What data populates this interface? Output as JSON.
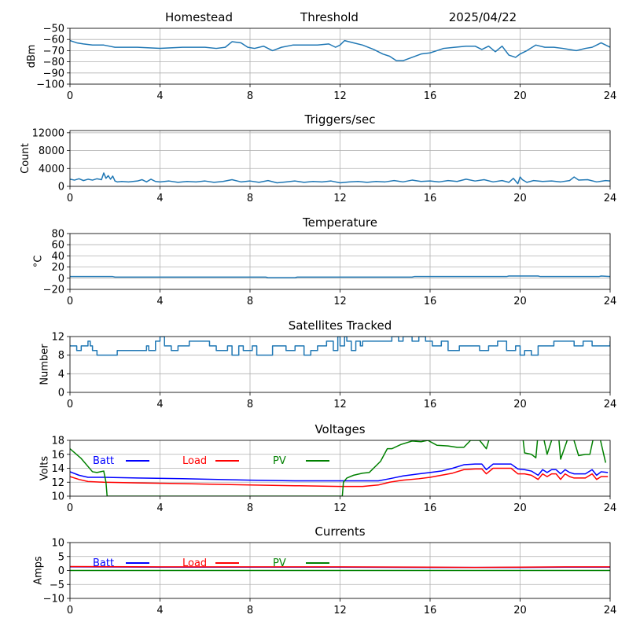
{
  "header": {
    "station": "Homestead",
    "mode": "Threshold",
    "date": "2025/04/22"
  },
  "colors": {
    "default": "#1f77b4",
    "batt": "#0000ff",
    "load": "#ff0000",
    "pv": "#008000",
    "grid": "#b0b0b0"
  },
  "chart_data": [
    {
      "id": "signal",
      "type": "line",
      "title": "",
      "xlabel": "",
      "ylabel": "dBm",
      "xlim": [
        0,
        24
      ],
      "ylim": [
        -100,
        -50
      ],
      "xticks": [
        0,
        4,
        8,
        12,
        16,
        20,
        24
      ],
      "yticks": [
        -100,
        -90,
        -80,
        -70,
        -60,
        -50
      ],
      "grid": true,
      "series": [
        {
          "color": "#1f77b4",
          "x": [
            0,
            0.3,
            0.6,
            1,
            1.5,
            2,
            3,
            4,
            5,
            6,
            6.5,
            6.9,
            7.2,
            7.6,
            7.9,
            8.2,
            8.6,
            9,
            9.4,
            9.9,
            10.4,
            11,
            11.5,
            11.8,
            12,
            12.2,
            12.6,
            13,
            13.5,
            13.9,
            14.2,
            14.5,
            14.8,
            15.2,
            15.6,
            16,
            16.3,
            16.6,
            17.1,
            17.6,
            18,
            18.3,
            18.6,
            18.9,
            19.2,
            19.5,
            19.8,
            20,
            20.3,
            20.7,
            21.1,
            21.5,
            21.9,
            22.2,
            22.5,
            22.9,
            23.2,
            23.6,
            24
          ],
          "y": [
            -61,
            -63,
            -64,
            -65,
            -65,
            -67,
            -67,
            -68,
            -67,
            -67,
            -68,
            -67,
            -62,
            -63,
            -67,
            -68,
            -66,
            -70,
            -67,
            -65,
            -65,
            -65,
            -64,
            -67,
            -65,
            -61,
            -63,
            -65,
            -69,
            -73,
            -75,
            -79,
            -79,
            -76,
            -73,
            -72,
            -70,
            -68,
            -67,
            -66,
            -66,
            -69,
            -66,
            -71,
            -66,
            -74,
            -76,
            -73,
            -70,
            -65,
            -67,
            -67,
            -68,
            -69,
            -70,
            -68,
            -67,
            -63,
            -67
          ]
        }
      ]
    },
    {
      "id": "triggers",
      "type": "line",
      "title": "Triggers/sec",
      "xlabel": "",
      "ylabel": "Count",
      "xlim": [
        0,
        24
      ],
      "ylim": [
        0,
        12500
      ],
      "xticks": [
        0,
        4,
        8,
        12,
        16,
        20,
        24
      ],
      "yticks": [
        0,
        4000,
        8000,
        12000
      ],
      "grid": true,
      "series": [
        {
          "color": "#1f77b4",
          "x": [
            0,
            0.2,
            0.4,
            0.6,
            0.8,
            1,
            1.2,
            1.4,
            1.5,
            1.6,
            1.7,
            1.8,
            1.9,
            2,
            2.1,
            2.3,
            2.6,
            3,
            3.2,
            3.4,
            3.6,
            3.8,
            4,
            4.4,
            4.8,
            5.2,
            5.6,
            6,
            6.4,
            6.8,
            7.2,
            7.6,
            8,
            8.4,
            8.8,
            9.2,
            9.6,
            10,
            10.4,
            10.8,
            11.2,
            11.6,
            12,
            12.4,
            12.8,
            13.2,
            13.6,
            14,
            14.4,
            14.8,
            15.2,
            15.6,
            16,
            16.4,
            16.8,
            17.2,
            17.6,
            18,
            18.4,
            18.8,
            19.2,
            19.5,
            19.7,
            19.9,
            20,
            20.1,
            20.3,
            20.6,
            21,
            21.4,
            21.8,
            22.2,
            22.4,
            22.6,
            23,
            23.4,
            23.8,
            24
          ],
          "y": [
            1600,
            1400,
            1700,
            1300,
            1600,
            1400,
            1700,
            1500,
            3000,
            1800,
            2400,
            1600,
            2300,
            1200,
            1000,
            1100,
            1000,
            1200,
            1500,
            1000,
            1600,
            1100,
            1000,
            1200,
            900,
            1100,
            1000,
            1200,
            900,
            1100,
            1500,
            1000,
            1200,
            900,
            1300,
            800,
            1000,
            1200,
            900,
            1100,
            1000,
            1200,
            800,
            1000,
            1100,
            900,
            1100,
            1000,
            1300,
            1000,
            1400,
            1100,
            1200,
            1000,
            1300,
            1100,
            1600,
            1200,
            1500,
            1000,
            1300,
            900,
            1800,
            600,
            2100,
            1500,
            900,
            1300,
            1100,
            1200,
            1000,
            1300,
            2100,
            1400,
            1500,
            1000,
            1300,
            1200
          ]
        }
      ]
    },
    {
      "id": "temperature",
      "type": "line",
      "title": "Temperature",
      "xlabel": "",
      "ylabel": "°C",
      "xlim": [
        0,
        24
      ],
      "ylim": [
        -20,
        80
      ],
      "xticks": [
        0,
        4,
        8,
        12,
        16,
        20,
        24
      ],
      "yticks": [
        -20,
        0,
        20,
        40,
        60,
        80
      ],
      "grid": true,
      "series": [
        {
          "color": "#1f77b4",
          "x": [
            0,
            1.9,
            2,
            8.7,
            8.8,
            10,
            10.1,
            15.2,
            15.3,
            19.4,
            19.5,
            20.8,
            20.9,
            23.5,
            23.6,
            24
          ],
          "y": [
            3,
            3,
            2,
            2,
            1,
            1,
            2,
            2,
            3,
            3,
            4,
            4,
            3,
            3,
            4,
            3
          ]
        }
      ]
    },
    {
      "id": "satellites",
      "type": "line",
      "title": "Satellites Tracked",
      "xlabel": "",
      "ylabel": "Number",
      "xlim": [
        0,
        24
      ],
      "ylim": [
        0,
        12
      ],
      "xticks": [
        0,
        4,
        8,
        12,
        16,
        20,
        24
      ],
      "yticks": [
        0,
        4,
        8,
        12
      ],
      "grid": true,
      "series": [
        {
          "color": "#1f77b4",
          "step": true,
          "x": [
            0,
            0.3,
            0.5,
            0.8,
            0.9,
            1,
            1.2,
            2.1,
            3,
            3.4,
            3.5,
            3.8,
            4,
            4.2,
            4.5,
            4.8,
            5.3,
            6.2,
            6.5,
            7,
            7.2,
            7.5,
            7.7,
            8.1,
            8.3,
            9,
            9.6,
            10,
            10.4,
            10.7,
            11,
            11.4,
            11.7,
            11.9,
            12,
            12.2,
            12.3,
            12.5,
            12.7,
            12.9,
            13,
            14.1,
            14.3,
            14.6,
            14.8,
            15.2,
            15.5,
            15.8,
            16.1,
            16.5,
            16.8,
            17.3,
            17.8,
            18.2,
            18.6,
            19,
            19.4,
            19.8,
            20,
            20.2,
            20.5,
            20.8,
            21.1,
            21.5,
            22,
            22.4,
            22.8,
            23.2,
            23.6,
            24
          ],
          "y": [
            10,
            9,
            10,
            11,
            10,
            9,
            8,
            9,
            9,
            10,
            9,
            11,
            12,
            10,
            9,
            10,
            11,
            10,
            9,
            10,
            8,
            10,
            9,
            10,
            8,
            10,
            9,
            10,
            8,
            9,
            10,
            11,
            9,
            12,
            10,
            12,
            11,
            9,
            11,
            10,
            11,
            11,
            12,
            11,
            12,
            11,
            12,
            11,
            10,
            11,
            9,
            10,
            10,
            9,
            10,
            11,
            9,
            10,
            8,
            9,
            8,
            10,
            10,
            11,
            11,
            10,
            11,
            10,
            10,
            11
          ]
        }
      ]
    },
    {
      "id": "voltages",
      "type": "line",
      "title": "Voltages",
      "xlabel": "",
      "ylabel": "Volts",
      "xlim": [
        0,
        24
      ],
      "ylim": [
        10,
        18
      ],
      "xticks": [
        0,
        4,
        8,
        12,
        16,
        20,
        24
      ],
      "yticks": [
        10,
        12,
        14,
        16,
        18
      ],
      "grid": true,
      "series": [
        {
          "name": "Batt",
          "color": "#0000ff",
          "x": [
            0,
            0.4,
            0.8,
            1.5,
            3,
            5,
            8,
            10,
            12,
            13,
            13.7,
            14.2,
            14.8,
            15.5,
            16,
            16.5,
            17,
            17.5,
            18,
            18.3,
            18.5,
            18.8,
            19,
            19.6,
            19.9,
            20.2,
            20.5,
            20.8,
            21,
            21.2,
            21.4,
            21.6,
            21.8,
            22,
            22.2,
            22.4,
            22.6,
            22.9,
            23.2,
            23.4,
            23.6,
            23.9
          ],
          "y": [
            13.5,
            13.0,
            12.7,
            12.7,
            12.6,
            12.5,
            12.3,
            12.2,
            12.2,
            12.2,
            12.2,
            12.5,
            12.9,
            13.2,
            13.4,
            13.6,
            14.0,
            14.5,
            14.6,
            14.6,
            13.8,
            14.6,
            14.6,
            14.6,
            13.9,
            13.8,
            13.6,
            13.0,
            13.8,
            13.4,
            13.8,
            13.8,
            13.2,
            13.8,
            13.4,
            13.2,
            13.2,
            13.2,
            13.8,
            13.0,
            13.5,
            13.4
          ]
        },
        {
          "name": "Load",
          "color": "#ff0000",
          "x": [
            0,
            0.4,
            0.8,
            1.5,
            3,
            5,
            8,
            10,
            12,
            13,
            13.7,
            14.2,
            14.8,
            15.5,
            16,
            16.5,
            17,
            17.5,
            18,
            18.3,
            18.5,
            18.8,
            19,
            19.6,
            19.9,
            20.2,
            20.5,
            20.8,
            21,
            21.2,
            21.4,
            21.6,
            21.8,
            22,
            22.2,
            22.4,
            22.6,
            22.9,
            23.2,
            23.4,
            23.6,
            23.9
          ],
          "y": [
            12.8,
            12.4,
            12.1,
            12.0,
            11.9,
            11.8,
            11.6,
            11.5,
            11.4,
            11.4,
            11.6,
            12.0,
            12.3,
            12.5,
            12.7,
            13.0,
            13.3,
            13.8,
            13.9,
            13.9,
            13.2,
            14.0,
            14.0,
            14.0,
            13.2,
            13.2,
            13.0,
            12.4,
            13.2,
            12.8,
            13.2,
            13.2,
            12.4,
            13.2,
            12.8,
            12.6,
            12.6,
            12.6,
            13.2,
            12.4,
            12.8,
            12.8
          ]
        },
        {
          "name": "PV",
          "color": "#008000",
          "x": [
            0,
            0.5,
            1,
            1.2,
            1.5,
            1.6,
            1.65,
            12.1,
            12.15,
            12.3,
            12.6,
            13,
            13.3,
            13.8,
            14.1,
            14.3,
            14.7,
            15.2,
            15.6,
            15.9,
            16.3,
            16.8,
            17.2,
            17.5,
            17.8,
            18.2,
            18.5,
            18.7,
            19,
            19.5,
            19.9,
            20.1,
            20.2,
            20.5,
            20.7,
            20.8,
            21,
            21.2,
            21.5,
            21.7,
            21.8,
            22.2,
            22.3,
            22.6,
            22.9,
            23.1,
            23.3,
            23.5,
            23.8
          ],
          "y": [
            16.8,
            15.4,
            13.5,
            13.4,
            13.6,
            12.0,
            10.0,
            10.0,
            12.0,
            12.6,
            13.0,
            13.3,
            13.4,
            15.0,
            16.8,
            16.8,
            17.4,
            17.9,
            17.8,
            18.0,
            17.3,
            17.2,
            17.0,
            17.0,
            18.0,
            18.0,
            16.8,
            19.0,
            19.0,
            19.0,
            19.0,
            19.0,
            16.2,
            16.0,
            15.5,
            19.0,
            19.0,
            16.0,
            19.0,
            19.0,
            15.3,
            19.0,
            19.0,
            15.8,
            16.0,
            16.0,
            19.0,
            19.0,
            14.8
          ]
        }
      ]
    },
    {
      "id": "currents",
      "type": "line",
      "title": "Currents",
      "xlabel": "",
      "ylabel": "Amps",
      "xlim": [
        0,
        24
      ],
      "ylim": [
        -10,
        10
      ],
      "xticks": [
        0,
        4,
        8,
        12,
        16,
        20,
        24
      ],
      "yticks": [
        -10,
        -5,
        0,
        5,
        10
      ],
      "grid": true,
      "series": [
        {
          "name": "Batt",
          "color": "#0000ff",
          "x": [
            0,
            4,
            8,
            12,
            16,
            18,
            20,
            22,
            24
          ],
          "y": [
            1.3,
            1.2,
            1.2,
            1.2,
            1.1,
            1.1,
            1.1,
            1.2,
            1.2
          ]
        },
        {
          "name": "Load",
          "color": "#ff0000",
          "x": [
            0,
            4,
            8,
            12,
            16,
            18,
            20,
            22,
            24
          ],
          "y": [
            1.4,
            1.3,
            1.3,
            1.3,
            1.2,
            1.1,
            1.2,
            1.3,
            1.3
          ]
        },
        {
          "name": "PV",
          "color": "#008000",
          "x": [
            0,
            4,
            8,
            12,
            16,
            20,
            24
          ],
          "y": [
            0,
            0,
            0,
            0,
            0,
            0,
            0
          ]
        }
      ]
    }
  ]
}
